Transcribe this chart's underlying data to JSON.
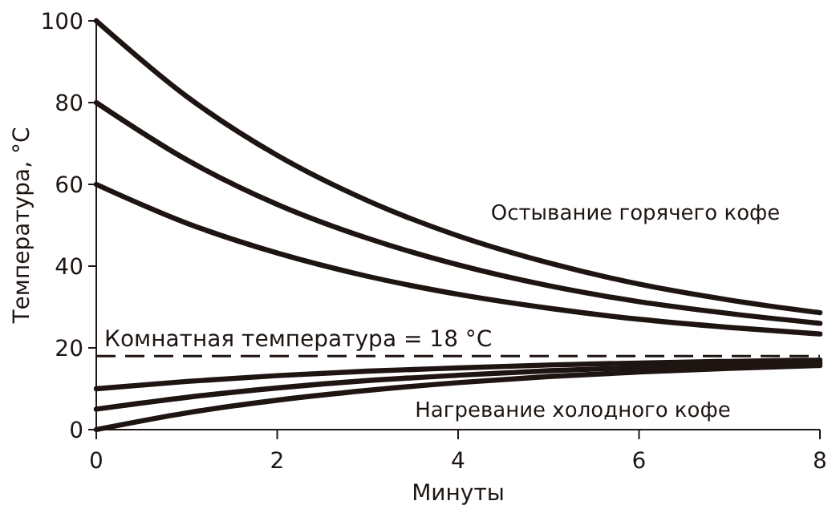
{
  "chart_data": {
    "type": "line",
    "xlabel": "Минуты",
    "ylabel": "Температура, °C",
    "x": [
      0,
      1,
      2,
      3,
      4,
      5,
      6,
      7,
      8
    ],
    "series": [
      {
        "color": "#1e1512",
        "values": [
          100,
          81.5,
          67.1,
          56.0,
          47.4,
          40.8,
          35.6,
          31.7,
          28.6
        ]
      },
      {
        "color": "#1e1512",
        "values": [
          80,
          66.0,
          55.1,
          46.8,
          40.3,
          35.2,
          31.3,
          28.4,
          26.0
        ]
      },
      {
        "color": "#1e1512",
        "values": [
          60,
          50.5,
          43.2,
          37.5,
          33.1,
          29.7,
          27.0,
          25.0,
          23.4
        ]
      },
      {
        "color": "#1e1512",
        "values": [
          10,
          11.8,
          13.2,
          14.3,
          15.1,
          15.8,
          16.3,
          16.7,
          17.0
        ]
      },
      {
        "color": "#1e1512",
        "values": [
          5,
          7.9,
          10.2,
          12.0,
          13.3,
          14.4,
          15.2,
          15.8,
          16.3
        ]
      },
      {
        "color": "#1e1512",
        "values": [
          0,
          4.1,
          7.2,
          9.6,
          11.5,
          13.0,
          14.1,
          15.0,
          15.7
        ]
      }
    ],
    "xlim": [
      0,
      8
    ],
    "xticks": [
      0,
      2,
      4,
      6,
      8
    ],
    "ylim": [
      0,
      100
    ],
    "yticks": [
      0,
      20,
      40,
      60,
      80,
      100
    ],
    "ref_lines": [
      {
        "axis": "y",
        "value": 18,
        "label": "Комнатная температура = 18 °C",
        "color": "#1e1512",
        "line_style": "dashed"
      }
    ],
    "annotations": [
      "Остывание горячего кофе",
      "Нагревание холодного кофе"
    ],
    "grid": false,
    "marker": "none",
    "line_style": "solid"
  }
}
